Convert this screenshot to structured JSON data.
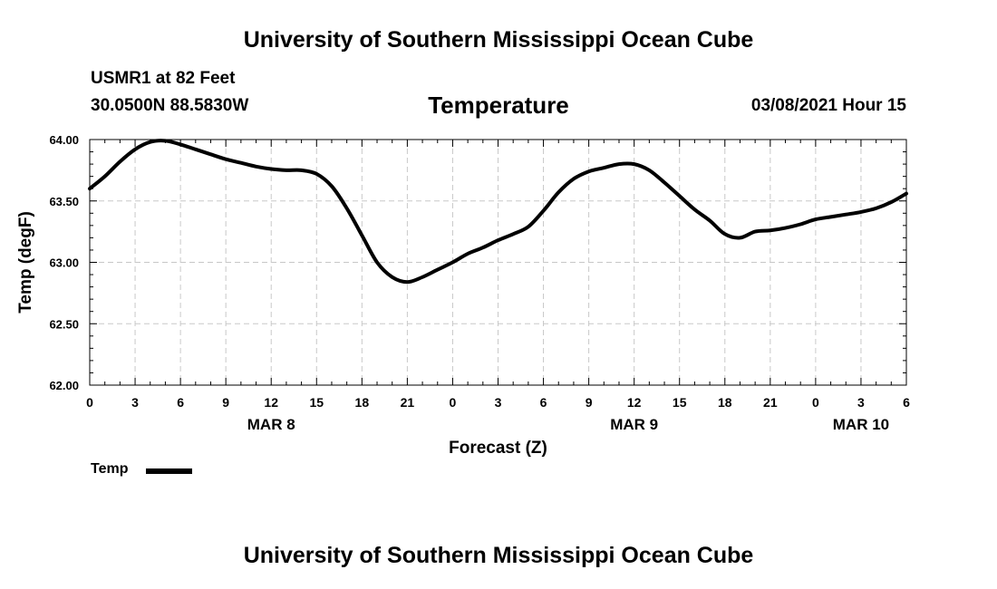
{
  "header": {
    "title_top": "University of Southern Mississippi Ocean Cube",
    "title_bottom": "University of Southern Mississippi Ocean Cube",
    "station": "USMR1 at 82 Feet",
    "coords": "30.0500N 88.5830W",
    "datetime": "03/08/2021 Hour 15"
  },
  "chart_data": {
    "type": "line",
    "title": "Temperature",
    "xlabel": "Forecast (Z)",
    "ylabel": "Temp (degF)",
    "xlim": [
      0,
      54
    ],
    "ylim": [
      62.0,
      64.0
    ],
    "xticks": [
      0,
      3,
      6,
      9,
      12,
      15,
      18,
      21,
      24,
      27,
      30,
      33,
      36,
      39,
      42,
      45,
      48,
      51,
      54
    ],
    "xtick_labels": [
      "0",
      "3",
      "6",
      "9",
      "12",
      "15",
      "18",
      "21",
      "0",
      "3",
      "6",
      "9",
      "12",
      "15",
      "18",
      "21",
      "0",
      "3",
      "6"
    ],
    "yticks": [
      62.0,
      62.5,
      63.0,
      63.5,
      64.0
    ],
    "ytick_labels": [
      "62.00",
      "62.50",
      "63.00",
      "63.50",
      "64.00"
    ],
    "day_labels": [
      {
        "x": 12,
        "label": "MAR 8"
      },
      {
        "x": 36,
        "label": "MAR 9"
      },
      {
        "x": 51,
        "label": "MAR 10"
      }
    ],
    "grid": true,
    "legend": [
      {
        "name": "Temp",
        "color": "#000000"
      }
    ],
    "series": [
      {
        "name": "Temp",
        "color": "#000000",
        "x": [
          0,
          1,
          2,
          3,
          4,
          5,
          6,
          7,
          8,
          9,
          10,
          11,
          12,
          13,
          14,
          15,
          16,
          17,
          18,
          19,
          20,
          21,
          22,
          23,
          24,
          25,
          26,
          27,
          28,
          29,
          30,
          31,
          32,
          33,
          34,
          35,
          36,
          37,
          38,
          39,
          40,
          41,
          42,
          43,
          44,
          45,
          46,
          47,
          48,
          49,
          50,
          51,
          52,
          53,
          54
        ],
        "y": [
          63.6,
          63.7,
          63.82,
          63.92,
          63.98,
          63.99,
          63.96,
          63.92,
          63.88,
          63.84,
          63.81,
          63.78,
          63.76,
          63.75,
          63.75,
          63.72,
          63.62,
          63.44,
          63.22,
          63.0,
          62.88,
          62.84,
          62.88,
          62.94,
          63.0,
          63.07,
          63.12,
          63.18,
          63.23,
          63.29,
          63.42,
          63.57,
          63.68,
          63.74,
          63.77,
          63.8,
          63.8,
          63.75,
          63.65,
          63.54,
          63.43,
          63.34,
          63.23,
          63.2,
          63.25,
          63.26,
          63.28,
          63.31,
          63.35,
          63.37,
          63.39,
          63.41,
          63.44,
          63.49,
          63.56
        ]
      }
    ]
  }
}
